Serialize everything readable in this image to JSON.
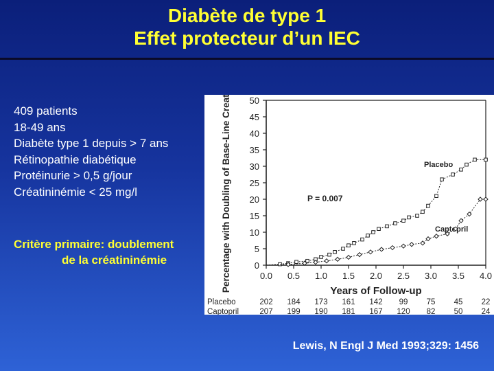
{
  "title": {
    "line1": "Diabète de type 1",
    "line2": "Effet protecteur d’un IEC"
  },
  "info": [
    "409 patients",
    "18-49 ans",
    "Diabète type 1 depuis > 7 ans",
    "Rétinopathie diabétique",
    "Protéinurie > 0,5 g/jour",
    "Créatininémie < 25 mg/l"
  ],
  "criterion": {
    "line1": "Critère primaire: doublement",
    "line2": "de la créatininémie"
  },
  "citation": "Lewis,  N Engl J Med 1993;329: 1456",
  "colors": {
    "title": "#ffff33",
    "background_top": "#0b1f7a",
    "background_bottom": "#2e62d6",
    "plot_ink": "#222222"
  },
  "chart_data": {
    "type": "line",
    "ylabel": "Percentage with Doubling of Base-Line Creatinine",
    "xlabel": "Years of Follow-up",
    "xlim": [
      0,
      4
    ],
    "ylim": [
      0,
      50
    ],
    "x_ticks": [
      "0.0",
      "0.5",
      "1.0",
      "1.5",
      "2.0",
      "2.5",
      "3.0",
      "3.5",
      "4.0"
    ],
    "y_ticks": [
      "0",
      "5",
      "10",
      "15",
      "20",
      "25",
      "30",
      "35",
      "40",
      "45",
      "50"
    ],
    "annotation": "P = 0.007",
    "series": [
      {
        "name": "Placebo",
        "marker": "square",
        "points": [
          [
            0,
            0
          ],
          [
            0.25,
            0.3
          ],
          [
            0.4,
            0.6
          ],
          [
            0.55,
            1.0
          ],
          [
            0.75,
            1.3
          ],
          [
            0.9,
            1.8
          ],
          [
            1.0,
            2.5
          ],
          [
            1.15,
            3.2
          ],
          [
            1.25,
            4.0
          ],
          [
            1.4,
            5.0
          ],
          [
            1.5,
            6.0
          ],
          [
            1.6,
            6.7
          ],
          [
            1.75,
            7.8
          ],
          [
            1.85,
            9.0
          ],
          [
            1.95,
            10.0
          ],
          [
            2.05,
            11.0
          ],
          [
            2.2,
            11.8
          ],
          [
            2.35,
            12.7
          ],
          [
            2.5,
            13.5
          ],
          [
            2.6,
            14.5
          ],
          [
            2.75,
            15.0
          ],
          [
            2.85,
            16.2
          ],
          [
            2.95,
            18.0
          ],
          [
            3.1,
            21.0
          ],
          [
            3.2,
            26.0
          ],
          [
            3.4,
            27.5
          ],
          [
            3.55,
            29.0
          ],
          [
            3.65,
            30.5
          ],
          [
            3.8,
            32.0
          ],
          [
            4.0,
            32.0
          ]
        ]
      },
      {
        "name": "Captopril",
        "marker": "diamond",
        "points": [
          [
            0,
            0
          ],
          [
            0.4,
            0.2
          ],
          [
            0.7,
            0.6
          ],
          [
            0.9,
            0.9
          ],
          [
            1.1,
            1.3
          ],
          [
            1.3,
            1.8
          ],
          [
            1.5,
            2.4
          ],
          [
            1.7,
            3.2
          ],
          [
            1.9,
            4.0
          ],
          [
            2.1,
            4.8
          ],
          [
            2.3,
            5.3
          ],
          [
            2.5,
            5.8
          ],
          [
            2.65,
            6.3
          ],
          [
            2.85,
            6.7
          ],
          [
            2.95,
            8.0
          ],
          [
            3.1,
            8.8
          ],
          [
            3.3,
            9.5
          ],
          [
            3.45,
            11.0
          ],
          [
            3.55,
            13.5
          ],
          [
            3.7,
            15.5
          ],
          [
            3.9,
            20.0
          ],
          [
            4.0,
            20.0
          ]
        ]
      }
    ],
    "series_labels": [
      "Placebo",
      "Captopril"
    ],
    "risk_table": {
      "times": [
        "0.0",
        "0.5",
        "1.0",
        "1.5",
        "2.0",
        "2.5",
        "3.0",
        "3.5",
        "4.0"
      ],
      "rows": [
        {
          "label": "Placebo",
          "values": [
            202,
            184,
            173,
            161,
            142,
            99,
            75,
            45,
            22
          ]
        },
        {
          "label": "Captopril",
          "values": [
            207,
            199,
            190,
            181,
            167,
            120,
            82,
            50,
            24
          ]
        }
      ]
    }
  }
}
